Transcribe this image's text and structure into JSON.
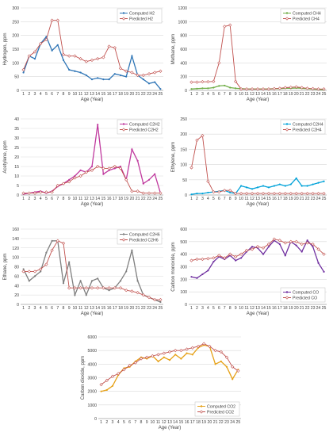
{
  "chart_data": [
    {
      "type": "line",
      "ylabel": "Hydrogen, ppm",
      "xlabel": "Age (Year)",
      "ylim": [
        0,
        300
      ],
      "yticks": [
        0,
        50,
        100,
        150,
        200,
        250,
        300
      ],
      "x": [
        1,
        2,
        3,
        4,
        5,
        6,
        7,
        8,
        9,
        10,
        11,
        12,
        13,
        14,
        15,
        16,
        17,
        18,
        19,
        20,
        21,
        22,
        23,
        24,
        25
      ],
      "legend_position": "top-right",
      "grid": true,
      "series": [
        {
          "name": "Computed H2",
          "color": "#2e75b6",
          "marker": "circle",
          "values": [
            65,
            125,
            115,
            170,
            195,
            145,
            165,
            110,
            75,
            70,
            65,
            55,
            40,
            45,
            40,
            40,
            60,
            55,
            50,
            125,
            55,
            40,
            25,
            30,
            5
          ]
        },
        {
          "name": "Predicted H2",
          "color": "#c0504d",
          "marker": "diamond-open",
          "values": [
            75,
            125,
            140,
            170,
            185,
            255,
            255,
            130,
            125,
            125,
            115,
            105,
            110,
            115,
            120,
            160,
            155,
            80,
            70,
            65,
            55,
            55,
            60,
            65,
            70
          ]
        }
      ]
    },
    {
      "type": "line",
      "ylabel": "Methane, ppm",
      "xlabel": "Age (Year)",
      "ylim": [
        0,
        1200
      ],
      "yticks": [
        0,
        200,
        400,
        600,
        800,
        1000,
        1200
      ],
      "x": [
        1,
        2,
        3,
        4,
        5,
        6,
        7,
        8,
        9,
        10,
        11,
        12,
        13,
        14,
        15,
        16,
        17,
        18,
        19,
        20,
        21,
        22,
        23,
        24,
        25
      ],
      "legend_position": "top-right",
      "grid": true,
      "series": [
        {
          "name": "Computed CH4",
          "color": "#70ad47",
          "marker": "circle",
          "values": [
            20,
            25,
            30,
            30,
            40,
            65,
            70,
            40,
            30,
            25,
            20,
            20,
            20,
            20,
            20,
            25,
            25,
            30,
            30,
            35,
            30,
            25,
            20,
            15,
            10
          ]
        },
        {
          "name": "Predicted CH4",
          "color": "#c0504d",
          "marker": "diamond-open",
          "values": [
            120,
            120,
            125,
            125,
            130,
            400,
            930,
            950,
            130,
            20,
            20,
            20,
            20,
            20,
            20,
            25,
            30,
            40,
            45,
            50,
            40,
            30,
            25,
            20,
            20
          ]
        }
      ]
    },
    {
      "type": "line",
      "ylabel": "Acetylene, ppm",
      "xlabel": "Age (Year)",
      "ylim": [
        0,
        40
      ],
      "yticks": [
        0,
        5,
        10,
        15,
        20,
        25,
        30,
        35,
        40
      ],
      "x": [
        1,
        2,
        3,
        4,
        5,
        6,
        7,
        8,
        9,
        10,
        11,
        12,
        13,
        14,
        15,
        16,
        17,
        18,
        19,
        20,
        21,
        22,
        23,
        24,
        25
      ],
      "legend_position": "top-right",
      "grid": true,
      "series": [
        {
          "name": "Computed C2H2",
          "color": "#c0399e",
          "marker": "circle",
          "values": [
            0.5,
            1,
            1.5,
            2,
            1,
            2,
            4.5,
            6,
            8,
            10,
            13,
            12,
            15,
            37,
            11,
            13,
            14,
            15,
            8,
            24,
            18,
            6,
            8,
            11,
            1
          ]
        },
        {
          "name": "Predicted C2H2",
          "color": "#c0504d",
          "marker": "diamond-open",
          "values": [
            1,
            1,
            1,
            1.5,
            1.5,
            1.5,
            5,
            6,
            7,
            9,
            10,
            12,
            13,
            15,
            14,
            14,
            15,
            14,
            8,
            2,
            2,
            1,
            1,
            1,
            1
          ]
        }
      ]
    },
    {
      "type": "line",
      "ylabel": "Ethylene, ppm",
      "xlabel": "Age (Year)",
      "ylim": [
        0,
        250
      ],
      "yticks": [
        0,
        50,
        100,
        150,
        200,
        250
      ],
      "x": [
        1,
        2,
        3,
        4,
        5,
        6,
        7,
        8,
        9,
        10,
        11,
        12,
        13,
        14,
        15,
        16,
        17,
        18,
        19,
        20,
        21,
        22,
        23,
        24,
        25
      ],
      "legend_position": "top-right",
      "grid": true,
      "series": [
        {
          "name": "Computed C2H4",
          "color": "#00a2d9",
          "marker": "circle",
          "values": [
            2,
            5,
            5,
            8,
            10,
            12,
            15,
            8,
            5,
            30,
            25,
            20,
            25,
            30,
            25,
            30,
            35,
            30,
            35,
            55,
            30,
            30,
            35,
            40,
            45
          ]
        },
        {
          "name": "Predicted C2H4",
          "color": "#c0504d",
          "marker": "diamond-open",
          "values": [
            90,
            180,
            195,
            45,
            10,
            10,
            15,
            15,
            5,
            5,
            5,
            5,
            5,
            5,
            5,
            5,
            5,
            5,
            5,
            5,
            5,
            5,
            5,
            5,
            5
          ]
        }
      ]
    },
    {
      "type": "line",
      "ylabel": "Ethane, ppm",
      "xlabel": "Age (Year)",
      "ylim": [
        0,
        160
      ],
      "yticks": [
        0,
        20,
        40,
        60,
        80,
        100,
        120,
        140,
        160
      ],
      "x": [
        1,
        2,
        3,
        4,
        5,
        6,
        7,
        8,
        9,
        10,
        11,
        12,
        13,
        14,
        15,
        16,
        17,
        18,
        19,
        20,
        21,
        22,
        23,
        24,
        25
      ],
      "legend_position": "top-right",
      "grid": true,
      "series": [
        {
          "name": "Computed C2H6",
          "color": "#7f7f7f",
          "marker": "circle",
          "values": [
            75,
            50,
            60,
            70,
            110,
            135,
            135,
            45,
            90,
            20,
            50,
            20,
            50,
            55,
            35,
            30,
            35,
            50,
            70,
            115,
            50,
            20,
            15,
            10,
            5
          ]
        },
        {
          "name": "Predicted C2H6",
          "color": "#c0504d",
          "marker": "diamond-open",
          "values": [
            70,
            70,
            70,
            75,
            85,
            115,
            135,
            130,
            35,
            35,
            35,
            35,
            35,
            35,
            35,
            35,
            35,
            35,
            30,
            28,
            25,
            20,
            15,
            10,
            10
          ]
        }
      ]
    },
    {
      "type": "line",
      "ylabel": "Carbon monoxide, ppm",
      "xlabel": "Age (Year)",
      "ylim": [
        0,
        600
      ],
      "yticks": [
        0,
        100,
        200,
        300,
        400,
        500,
        600
      ],
      "x": [
        1,
        2,
        3,
        4,
        5,
        6,
        7,
        8,
        9,
        10,
        11,
        12,
        13,
        14,
        15,
        16,
        17,
        18,
        19,
        20,
        21,
        22,
        23,
        24,
        25
      ],
      "legend_position": "bottom-right",
      "grid": true,
      "series": [
        {
          "name": "Computed CO",
          "color": "#7030a0",
          "marker": "circle",
          "values": [
            220,
            210,
            240,
            270,
            340,
            380,
            360,
            390,
            350,
            370,
            420,
            460,
            450,
            400,
            460,
            510,
            480,
            390,
            500,
            470,
            420,
            510,
            460,
            330,
            260
          ]
        },
        {
          "name": "Predicted CO",
          "color": "#c0504d",
          "marker": "diamond-open",
          "values": [
            350,
            360,
            360,
            365,
            370,
            390,
            370,
            400,
            380,
            400,
            430,
            440,
            460,
            450,
            480,
            520,
            510,
            490,
            500,
            500,
            480,
            490,
            480,
            440,
            400
          ]
        }
      ]
    },
    {
      "type": "line",
      "ylabel": "Carbon dioxide, ppm",
      "xlabel": "Age (Year)",
      "ylim": [
        0,
        6000
      ],
      "yticks": [
        0,
        1000,
        2000,
        3000,
        4000,
        5000,
        6000
      ],
      "x": [
        1,
        2,
        3,
        4,
        5,
        6,
        7,
        8,
        9,
        10,
        11,
        12,
        13,
        14,
        15,
        16,
        17,
        18,
        19,
        20,
        21,
        22,
        23,
        24,
        25
      ],
      "legend_position": "bottom-right",
      "grid": true,
      "series": [
        {
          "name": "Computed CO2",
          "color": "#e6a118",
          "marker": "circle",
          "values": [
            2000,
            2100,
            2400,
            3200,
            3700,
            3800,
            4200,
            4500,
            4400,
            4600,
            4200,
            4500,
            4300,
            4700,
            4400,
            4800,
            4700,
            5200,
            5400,
            5300,
            4000,
            4200,
            3800,
            2900,
            3600
          ]
        },
        {
          "name": "Predicted CO2",
          "color": "#c0504d",
          "marker": "diamond-open",
          "values": [
            2500,
            2800,
            3100,
            3300,
            3600,
            3900,
            4100,
            4400,
            4500,
            4600,
            4700,
            4800,
            4900,
            5000,
            5000,
            5100,
            5200,
            5300,
            5500,
            5300,
            5000,
            4900,
            4500,
            3800,
            3500
          ]
        }
      ]
    }
  ]
}
